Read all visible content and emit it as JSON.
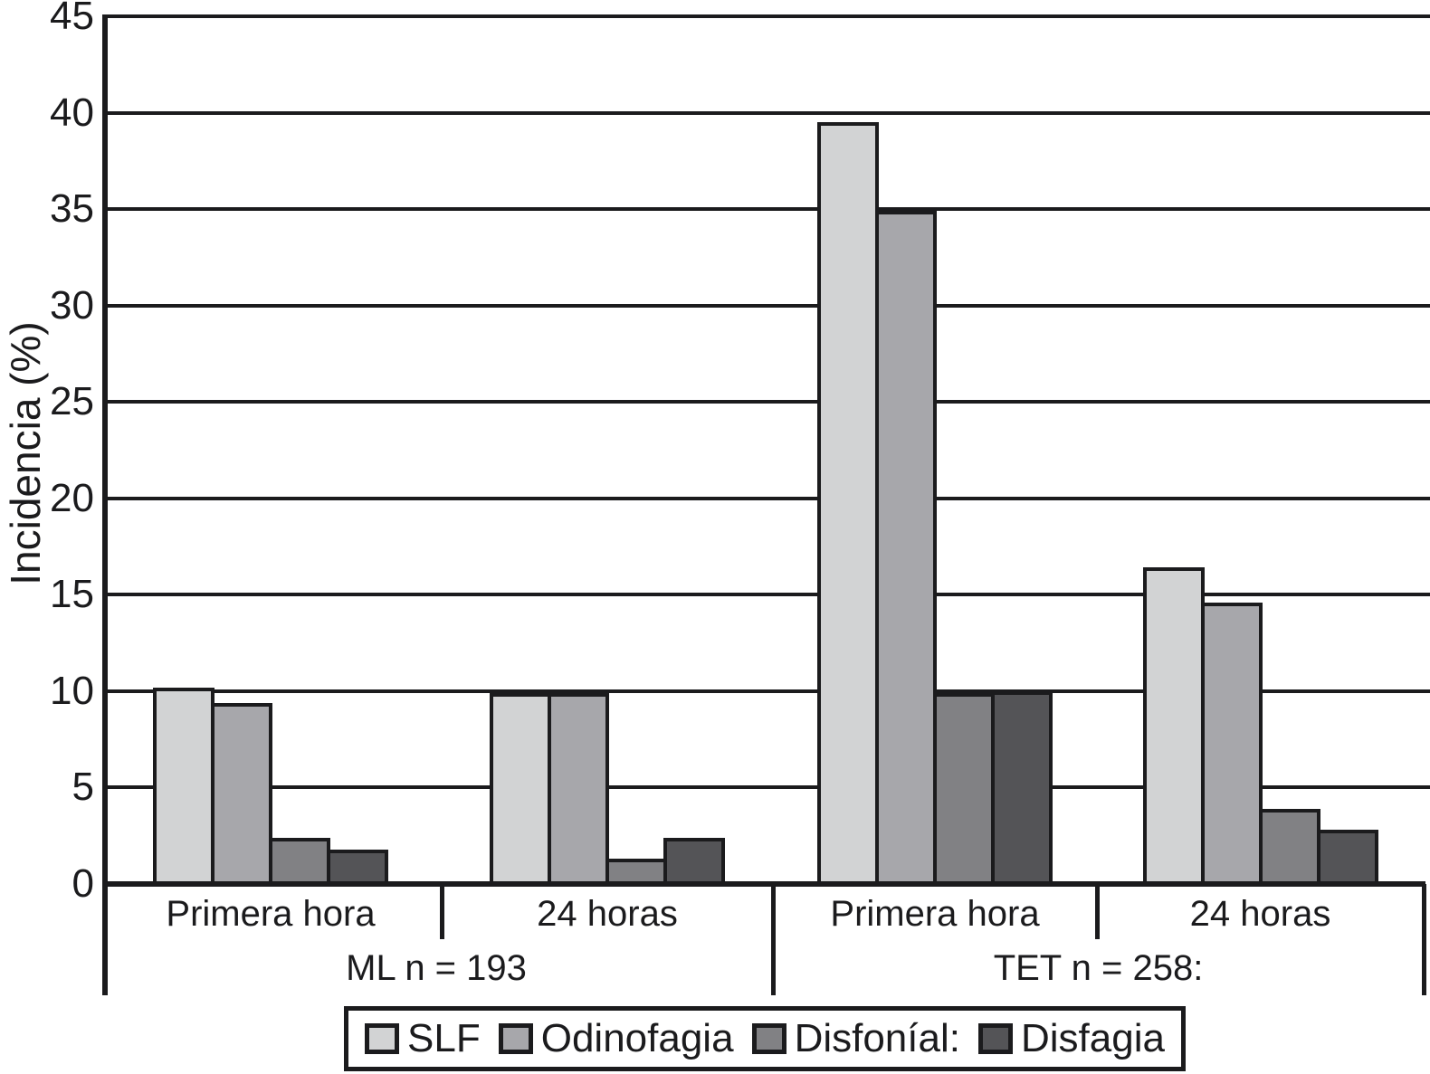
{
  "chart_data": {
    "type": "bar",
    "title": "",
    "xlabel": "",
    "ylabel": "Incidencia (%)",
    "ylim": [
      0,
      45
    ],
    "yticks": [
      45,
      40,
      35,
      30,
      25,
      20,
      15,
      10,
      5,
      0
    ],
    "grid": "horizontal",
    "legend_position": "bottom",
    "line_color": "#1b1b1d",
    "background_color": "#ffffff",
    "series": [
      {
        "name": "SLF",
        "color": "#d2d3d4"
      },
      {
        "name": "Odinofagia",
        "color": "#a7a7ab"
      },
      {
        "name": "Disfoníal:",
        "color": "#818184"
      },
      {
        "name": "Disfagia",
        "color": "#545457"
      }
    ],
    "groups": [
      {
        "label": "ML n = 193",
        "subgroups": [
          {
            "label": "Primera hora",
            "values": [
              10.2,
              9.4,
              2.4,
              1.8
            ]
          },
          {
            "label": "24 horas",
            "values": [
              9.9,
              9.9,
              1.3,
              2.4
            ]
          }
        ]
      },
      {
        "label": "TET n = 258:",
        "subgroups": [
          {
            "label": "Primera hora",
            "values": [
              39.5,
              34.9,
              9.9,
              10.0
            ]
          },
          {
            "label": "24 horas",
            "values": [
              16.4,
              14.6,
              3.9,
              2.8
            ]
          }
        ]
      }
    ]
  }
}
